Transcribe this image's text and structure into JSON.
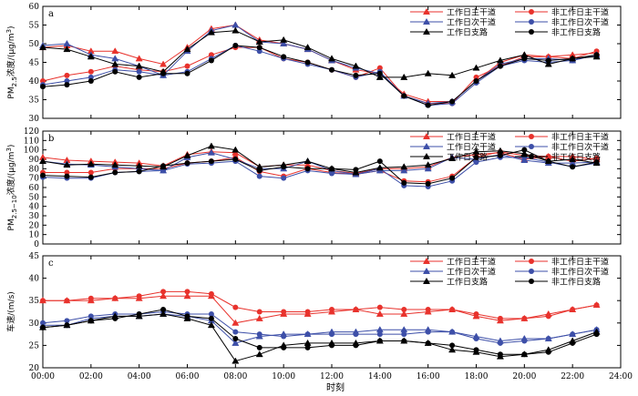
{
  "chart_data": [
    {
      "type": "line",
      "panel_label": "a",
      "ylabel": "PM2.5浓度/(μg/m³)",
      "ylabel_main": "PM",
      "ylabel_sub": "2.5",
      "ylabel_rest": "浓度/(μg/m",
      "ylabel_sup": "3",
      "ylabel_end": ")",
      "ylim": [
        30,
        60
      ],
      "yticks": [
        30,
        35,
        40,
        45,
        50,
        55,
        60
      ],
      "legend_position": "top-right",
      "series": [
        {
          "name": "工作日主干道",
          "color": "#e8322c",
          "marker": "triangle",
          "values": [
            49,
            49.5,
            48,
            48,
            46,
            44.5,
            49,
            54,
            55,
            51,
            50,
            48.5,
            45.5,
            43,
            42,
            36.5,
            34.5,
            34.5,
            40,
            45,
            47,
            46.5,
            47,
            47.5
          ]
        },
        {
          "name": "非工作日主干道",
          "color": "#e8322c",
          "marker": "circle",
          "values": [
            40,
            41.5,
            42.5,
            44,
            43,
            42.5,
            44,
            47,
            49,
            49,
            46,
            45,
            43,
            41,
            43.5,
            36,
            34,
            34,
            41,
            44,
            46.5,
            46.5,
            46,
            48
          ]
        },
        {
          "name": "工作日次干道",
          "color": "#3d4fa8",
          "marker": "triangle",
          "values": [
            49.5,
            50,
            47,
            46,
            44,
            41.5,
            48,
            53.5,
            55,
            50.5,
            50,
            48.5,
            45.5,
            43.5,
            42,
            36,
            34,
            34.5,
            40,
            44.5,
            46,
            46,
            45.5,
            47
          ]
        },
        {
          "name": "非工作日次干道",
          "color": "#3d4fa8",
          "marker": "circle",
          "values": [
            39,
            40,
            41,
            43,
            42.5,
            41.5,
            42.5,
            46,
            49.5,
            48,
            46,
            44.5,
            43,
            41,
            42.5,
            36,
            33.5,
            34,
            39.5,
            44,
            45.5,
            45,
            45.5,
            47
          ]
        },
        {
          "name": "工作日支路",
          "color": "#000000",
          "marker": "triangle",
          "values": [
            49,
            48.5,
            46.5,
            44.5,
            44,
            42.5,
            48.5,
            53,
            53.5,
            50.5,
            51,
            49,
            46,
            44,
            41,
            41,
            42,
            41.5,
            43.5,
            45.5,
            47,
            44.5,
            46,
            46.5
          ]
        },
        {
          "name": "非工作日支路",
          "color": "#000000",
          "marker": "circle",
          "values": [
            38.5,
            39,
            40,
            42.5,
            41,
            42,
            42,
            45.5,
            49.5,
            49,
            46.5,
            45,
            43,
            41.5,
            42,
            36,
            33.5,
            34.5,
            40,
            44,
            46,
            45.5,
            46,
            47
          ]
        }
      ]
    },
    {
      "type": "line",
      "panel_label": "b",
      "ylabel": "PM2.5~10浓度/(μg/m³)",
      "ylabel_main": "PM",
      "ylabel_sub": "2.5~10",
      "ylabel_rest": "浓度/(μg/m",
      "ylabel_sup": "3",
      "ylabel_end": ")",
      "ylim": [
        0,
        120
      ],
      "yticks": [
        0,
        10,
        20,
        30,
        40,
        50,
        60,
        70,
        80,
        90,
        100,
        110,
        120
      ],
      "legend_position": "top-right",
      "series": [
        {
          "name": "工作日主干道",
          "color": "#e8322c",
          "marker": "triangle",
          "values": [
            92,
            89,
            88,
            87,
            86,
            83,
            95,
            98,
            97,
            82,
            84,
            84,
            78,
            75,
            80,
            80,
            82,
            92,
            95,
            97,
            90,
            93,
            93,
            90
          ]
        },
        {
          "name": "非工作日主干道",
          "color": "#e8322c",
          "marker": "circle",
          "values": [
            76,
            76,
            76,
            80,
            80,
            80,
            86,
            88,
            92,
            77,
            72,
            80,
            76,
            74,
            78,
            67,
            66,
            72,
            92,
            98,
            94,
            93,
            88,
            91
          ]
        },
        {
          "name": "工作日次干道",
          "color": "#3d4fa8",
          "marker": "triangle",
          "values": [
            88,
            85,
            84,
            82,
            80,
            78,
            92,
            97,
            90,
            80,
            80,
            88,
            78,
            74,
            78,
            78,
            80,
            92,
            90,
            95,
            89,
            86,
            86,
            87
          ]
        },
        {
          "name": "非工作日次干道",
          "color": "#3d4fa8",
          "marker": "circle",
          "values": [
            71,
            70,
            70,
            76,
            77,
            78,
            85,
            86,
            88,
            72,
            70,
            78,
            75,
            74,
            80,
            62,
            61,
            67,
            87,
            92,
            92,
            87,
            82,
            86
          ]
        },
        {
          "name": "工作日支路",
          "color": "#000000",
          "marker": "triangle",
          "values": [
            88,
            84,
            85,
            84,
            83,
            82,
            94,
            104,
            100,
            82,
            84,
            88,
            80,
            76,
            81,
            82,
            84,
            91,
            98,
            99,
            96,
            88,
            90,
            86
          ]
        },
        {
          "name": "非工作日支路",
          "color": "#000000",
          "marker": "circle",
          "values": [
            73,
            72,
            71,
            76,
            77,
            83,
            86,
            88,
            90,
            78,
            82,
            80,
            80,
            79,
            88,
            65,
            64,
            70,
            92,
            94,
            100,
            88,
            82,
            87
          ]
        }
      ]
    },
    {
      "type": "line",
      "panel_label": "c",
      "ylabel": "车速/(m/s)",
      "ylim": [
        20,
        45
      ],
      "yticks": [
        20,
        25,
        30,
        35,
        40,
        45
      ],
      "legend_position": "top-right",
      "series": [
        {
          "name": "工作日主干道",
          "color": "#e8322c",
          "marker": "triangle",
          "values": [
            35,
            35,
            35,
            35.5,
            35.5,
            36,
            36,
            36,
            30,
            31,
            32,
            32,
            32.5,
            33,
            32,
            32,
            32.5,
            33,
            31.5,
            30.5,
            31,
            32,
            33,
            34
          ]
        },
        {
          "name": "非工作日主干道",
          "color": "#e8322c",
          "marker": "circle",
          "values": [
            35,
            35,
            35.5,
            35.5,
            36,
            37,
            37,
            36.5,
            33.5,
            32.5,
            32.5,
            32.5,
            33,
            33,
            33.5,
            33,
            33,
            33,
            32,
            31,
            31,
            31.5,
            33,
            34
          ]
        },
        {
          "name": "工作日次干道",
          "color": "#3d4fa8",
          "marker": "triangle",
          "values": [
            29.5,
            29.5,
            31,
            31.5,
            31.5,
            32,
            31.5,
            30.5,
            25.5,
            27,
            27.5,
            27.5,
            28,
            28,
            28.5,
            28.5,
            28.5,
            28,
            27,
            26,
            26.5,
            26.5,
            27.5,
            28.5
          ]
        },
        {
          "name": "非工作日次干道",
          "color": "#3d4fa8",
          "marker": "circle",
          "values": [
            30,
            30.5,
            31.5,
            32,
            32,
            32.5,
            32,
            32,
            28,
            27.5,
            27,
            27.5,
            27.5,
            27.5,
            27.5,
            27.5,
            28,
            28,
            26.5,
            25.5,
            26,
            26.5,
            27.5,
            28.5
          ]
        },
        {
          "name": "工作日支路",
          "color": "#000000",
          "marker": "triangle",
          "values": [
            29,
            29.5,
            30.5,
            31.5,
            31.5,
            32,
            31,
            29.5,
            21.5,
            23,
            25,
            25.5,
            25.5,
            25.5,
            26,
            26,
            25.5,
            24,
            23.5,
            22.5,
            23,
            24,
            26,
            28
          ]
        },
        {
          "name": "非工作日支路",
          "color": "#000000",
          "marker": "circle",
          "values": [
            29,
            29.5,
            30.5,
            31,
            32,
            33,
            31.5,
            31,
            26.5,
            24.5,
            24.5,
            24.5,
            25,
            25,
            26,
            26,
            25.5,
            25,
            24,
            23,
            23,
            23.5,
            25.5,
            27.5
          ]
        }
      ]
    }
  ],
  "x_axis": {
    "label": "时刻",
    "xlim": [
      0,
      24
    ],
    "tick_values": [
      0,
      2,
      4,
      6,
      8,
      10,
      12,
      14,
      16,
      18,
      20,
      22,
      24
    ],
    "tick_labels": [
      "00:00",
      "02:00",
      "04:00",
      "06:00",
      "08:00",
      "10:00",
      "12:00",
      "14:00",
      "16:00",
      "18:00",
      "20:00",
      "22:00",
      "24:00"
    ]
  },
  "hours": [
    0,
    1,
    2,
    3,
    4,
    5,
    6,
    7,
    8,
    9,
    10,
    11,
    12,
    13,
    14,
    15,
    16,
    17,
    18,
    19,
    20,
    21,
    22,
    23
  ]
}
